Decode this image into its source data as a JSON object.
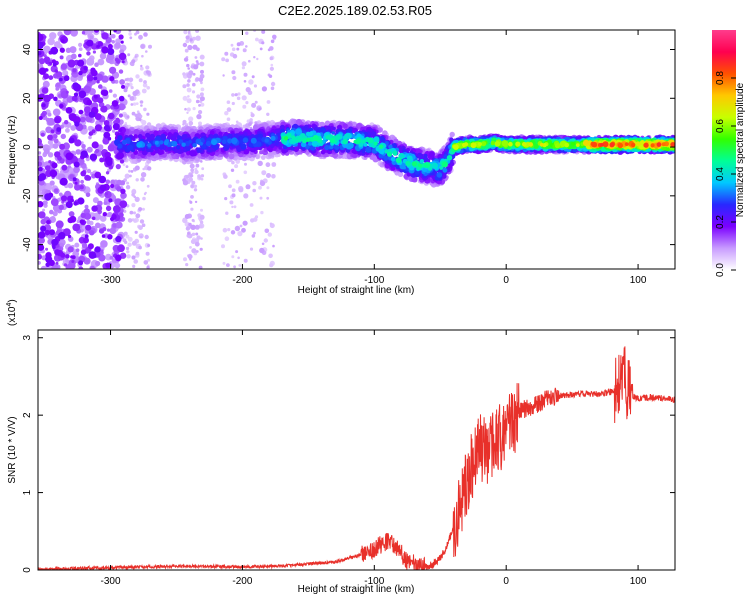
{
  "title": "C2E2.2025.189.02.53.R05",
  "chart_data": [
    {
      "type": "heatmap",
      "xlabel": "Height of straight line (km)",
      "ylabel": "Frequency (Hz)",
      "xlim": [
        -355,
        128
      ],
      "ylim": [
        -50,
        48
      ],
      "xticks": [
        -300,
        -200,
        -100,
        0,
        100
      ],
      "yticks": [
        -40,
        -20,
        0,
        20,
        40
      ],
      "grid": false,
      "colorbar": {
        "label": "Normalized spectral amplitude",
        "range": [
          0,
          1
        ],
        "ticks": [
          0.0,
          0.2,
          0.4,
          0.6,
          0.8
        ],
        "colormap": [
          "#ffffff",
          "#c89bff",
          "#7b00ff",
          "#2828ff",
          "#00c8ff",
          "#00ff96",
          "#32ff00",
          "#c8ff00",
          "#ffc800",
          "#ff5000",
          "#ff0050",
          "#ff3c8c"
        ]
      },
      "ridge": {
        "x": [
          -295,
          -280,
          -260,
          -240,
          -220,
          -200,
          -180,
          -160,
          -140,
          -120,
          -100,
          -90,
          -80,
          -70,
          -60,
          -50,
          -45,
          -40,
          -30,
          -20,
          -10,
          0,
          20,
          40,
          60,
          80,
          100,
          128
        ],
        "y": [
          2,
          1,
          2,
          1,
          2,
          2,
          3,
          4,
          3,
          3,
          2,
          -2,
          -5,
          -7,
          -8,
          -9,
          -6,
          0,
          1,
          1,
          2,
          1,
          1,
          1,
          1,
          1,
          1,
          1
        ]
      }
    },
    {
      "type": "line",
      "xlabel": "Height of straight line (km)",
      "ylabel": "SNR (10 * V/V)",
      "y_multiplier": "(x10",
      "y_multiplier_exponent": "4",
      "y_multiplier_close": ")",
      "xlim": [
        -355,
        128
      ],
      "ylim": [
        0,
        3.1
      ],
      "xticks": [
        -300,
        -200,
        -100,
        0,
        100
      ],
      "yticks": [
        0,
        1,
        2,
        3
      ],
      "grid": false,
      "series": [
        {
          "color": "#e8302a",
          "x": [
            -355,
            -300,
            -250,
            -200,
            -170,
            -150,
            -130,
            -120,
            -110,
            -100,
            -95,
            -90,
            -85,
            -80,
            -75,
            -70,
            -65,
            -60,
            -55,
            -50,
            -45,
            -40,
            -35,
            -30,
            -25,
            -20,
            -15,
            -10,
            -5,
            0,
            5,
            10,
            20,
            30,
            40,
            50,
            60,
            70,
            80,
            85,
            90,
            95,
            100,
            110,
            120,
            128
          ],
          "y": [
            0.01,
            0.03,
            0.05,
            0.04,
            0.05,
            0.08,
            0.1,
            0.15,
            0.2,
            0.28,
            0.33,
            0.38,
            0.32,
            0.22,
            0.12,
            0.08,
            0.06,
            0.05,
            0.08,
            0.15,
            0.3,
            0.55,
            0.8,
            1.1,
            1.4,
            1.6,
            1.55,
            1.6,
            1.7,
            1.78,
            1.9,
            2.05,
            2.12,
            2.2,
            2.25,
            2.27,
            2.28,
            2.27,
            2.3,
            2.4,
            2.45,
            2.25,
            2.22,
            2.23,
            2.22,
            2.2
          ]
        }
      ]
    }
  ]
}
